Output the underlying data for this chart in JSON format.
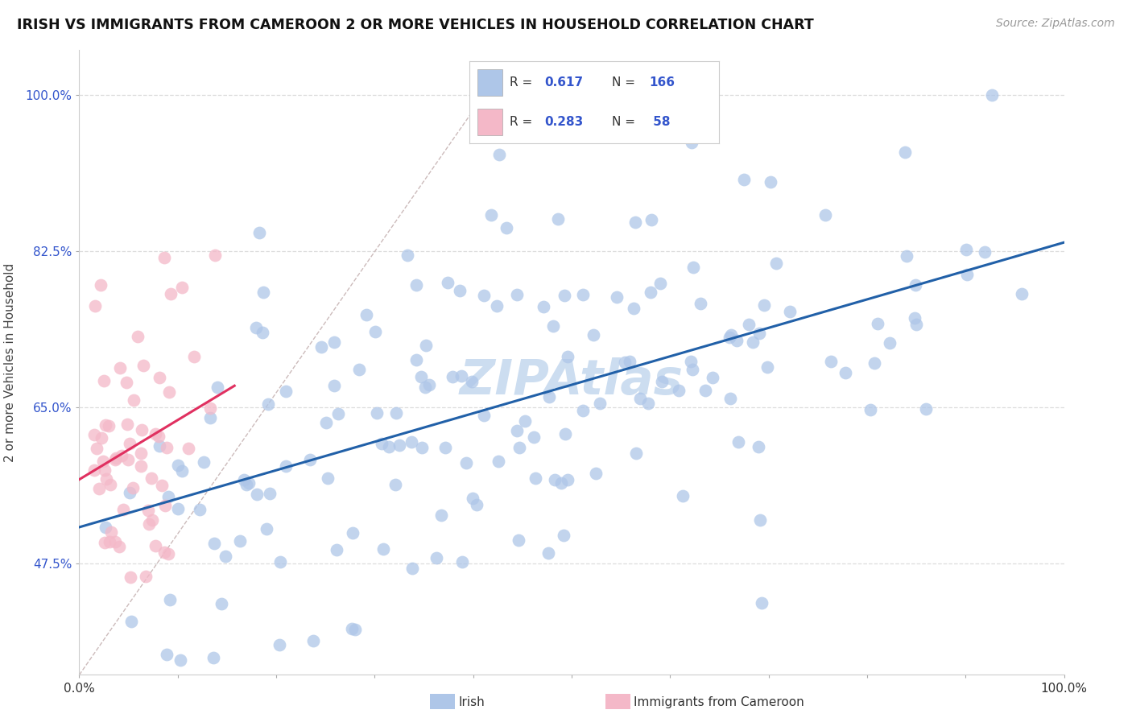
{
  "title": "IRISH VS IMMIGRANTS FROM CAMEROON 2 OR MORE VEHICLES IN HOUSEHOLD CORRELATION CHART",
  "source": "Source: ZipAtlas.com",
  "ylabel": "2 or more Vehicles in Household",
  "irish_R": 0.617,
  "irish_N": 166,
  "cameroon_R": 0.283,
  "cameroon_N": 58,
  "irish_color": "#aec6e8",
  "cameroon_color": "#f4b8c8",
  "irish_line_color": "#2160a8",
  "cameroon_line_color": "#e03060",
  "diagonal_color": "#ccbbbb",
  "background_color": "#ffffff",
  "ytick_vals": [
    0.475,
    0.65,
    0.825,
    1.0
  ],
  "ytick_labels": [
    "47.5%",
    "65.0%",
    "82.5%",
    "100.0%"
  ],
  "watermark_color": "#ccddf0",
  "legend_text_color": "#333333",
  "legend_value_color": "#3355cc",
  "yaxis_tick_color": "#3355cc",
  "xaxis_tick_color": "#333333"
}
